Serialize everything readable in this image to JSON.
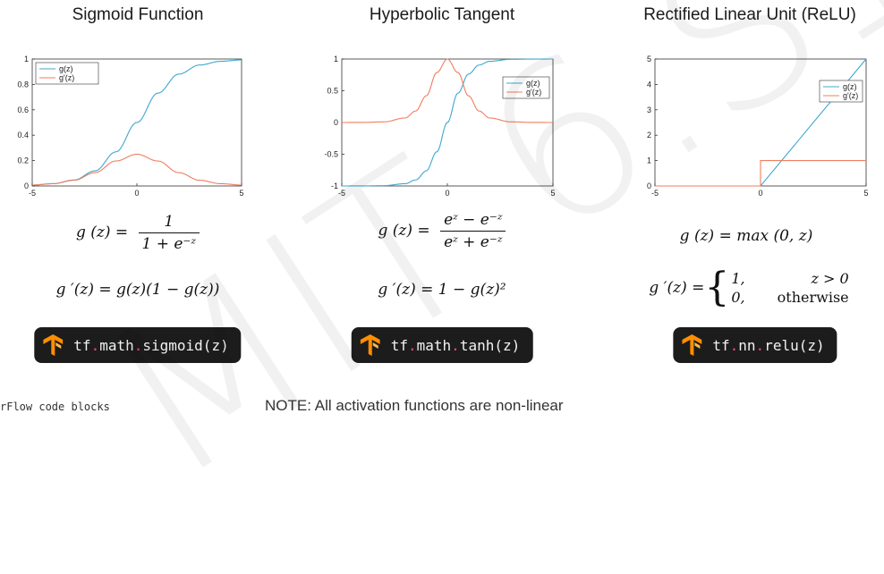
{
  "watermark": "MIT 6.S191",
  "colors": {
    "g": "#3fa7cf",
    "gprime": "#ef7d5f",
    "code_bg": "#1c1c1c",
    "code_dot": "#ff4b6e",
    "tf_orange": "#ff8f00"
  },
  "icons": {
    "tensorflow": "tensorflow-logo-icon"
  },
  "panels": [
    {
      "title": "Sigmoid Function",
      "formula_g_lhs": "g (z) =",
      "formula_g_num": "1",
      "formula_g_den": "1 + e⁻ᶻ",
      "formula_gp": "g ′(z) = g(z)(1 − g(z))",
      "code": {
        "ns1": "tf",
        "dot1": ".",
        "ns2": "math",
        "dot2": ".",
        "fn": "sigmoid(z)"
      }
    },
    {
      "title": "Hyperbolic Tangent",
      "formula_g_lhs": "g (z) =",
      "formula_g_num": "eᶻ − e⁻ᶻ",
      "formula_g_den": "eᶻ + e⁻ᶻ",
      "formula_gp": "g ′(z) = 1 − g(z)²",
      "code": {
        "ns1": "tf",
        "dot1": ".",
        "ns2": "math",
        "dot2": ".",
        "fn": "tanh(z)"
      }
    },
    {
      "title": "Rectified Linear Unit (ReLU)",
      "formula_g": "g (z) = max (0, z)",
      "formula_gp_lhs": "g ′(z) =",
      "case1_val": "1,",
      "case1_cond": "z > 0",
      "case2_val": "0,",
      "case2_cond": "otherwise",
      "code": {
        "ns1": "tf",
        "dot1": ".",
        "ns2": "nn",
        "dot2": ".",
        "fn": "relu(z)"
      }
    }
  ],
  "footer": {
    "left_text": "rFlow code blocks",
    "note": "NOTE:  All activation functions are non-linear"
  },
  "chart_data": [
    {
      "type": "line",
      "title": "Sigmoid Function",
      "xlim": [
        -5,
        5
      ],
      "ylim": [
        0,
        1
      ],
      "xticks": [
        "-5",
        "0",
        "5"
      ],
      "yticks": [
        "0",
        "0.2",
        "0.4",
        "0.6",
        "0.8",
        "1"
      ],
      "legend": "top-left",
      "grid": false,
      "x": [
        -5,
        -4,
        -3,
        -2,
        -1,
        0,
        1,
        2,
        3,
        4,
        5
      ],
      "series": [
        {
          "name": "g(z)",
          "values": [
            0.007,
            0.018,
            0.047,
            0.119,
            0.269,
            0.5,
            0.731,
            0.881,
            0.953,
            0.982,
            0.993
          ]
        },
        {
          "name": "g'(z)",
          "values": [
            0.007,
            0.018,
            0.045,
            0.105,
            0.197,
            0.25,
            0.197,
            0.105,
            0.045,
            0.018,
            0.007
          ]
        }
      ]
    },
    {
      "type": "line",
      "title": "Hyperbolic Tangent",
      "xlim": [
        -5,
        5
      ],
      "ylim": [
        -1,
        1
      ],
      "xticks": [
        "-5",
        "0",
        "5"
      ],
      "yticks": [
        "-1",
        "-0.5",
        "0",
        "0.5",
        "1"
      ],
      "legend": "top-right",
      "grid": false,
      "x": [
        -5,
        -4,
        -3,
        -2,
        -1.5,
        -1,
        -0.5,
        0,
        0.5,
        1,
        1.5,
        2,
        3,
        4,
        5
      ],
      "series": [
        {
          "name": "g(z)",
          "values": [
            -1,
            -0.999,
            -0.995,
            -0.964,
            -0.905,
            -0.762,
            -0.462,
            0,
            0.462,
            0.762,
            0.905,
            0.964,
            0.995,
            0.999,
            1
          ]
        },
        {
          "name": "g'(z)",
          "values": [
            0,
            0.001,
            0.01,
            0.071,
            0.181,
            0.42,
            0.786,
            1,
            0.786,
            0.42,
            0.181,
            0.071,
            0.01,
            0.001,
            0
          ]
        }
      ]
    },
    {
      "type": "line",
      "title": "Rectified Linear Unit (ReLU)",
      "xlim": [
        -5,
        5
      ],
      "ylim": [
        0,
        5
      ],
      "xticks": [
        "-5",
        "0",
        "5"
      ],
      "yticks": [
        "0",
        "1",
        "2",
        "3",
        "4",
        "5"
      ],
      "legend": "top-right",
      "grid": false,
      "series": [
        {
          "name": "g(z)",
          "x": [
            -5,
            0,
            5
          ],
          "values": [
            0,
            0,
            5
          ]
        },
        {
          "name": "g'(z)",
          "x": [
            -5,
            0,
            0,
            5
          ],
          "values": [
            0,
            0,
            1,
            1
          ]
        }
      ]
    }
  ]
}
